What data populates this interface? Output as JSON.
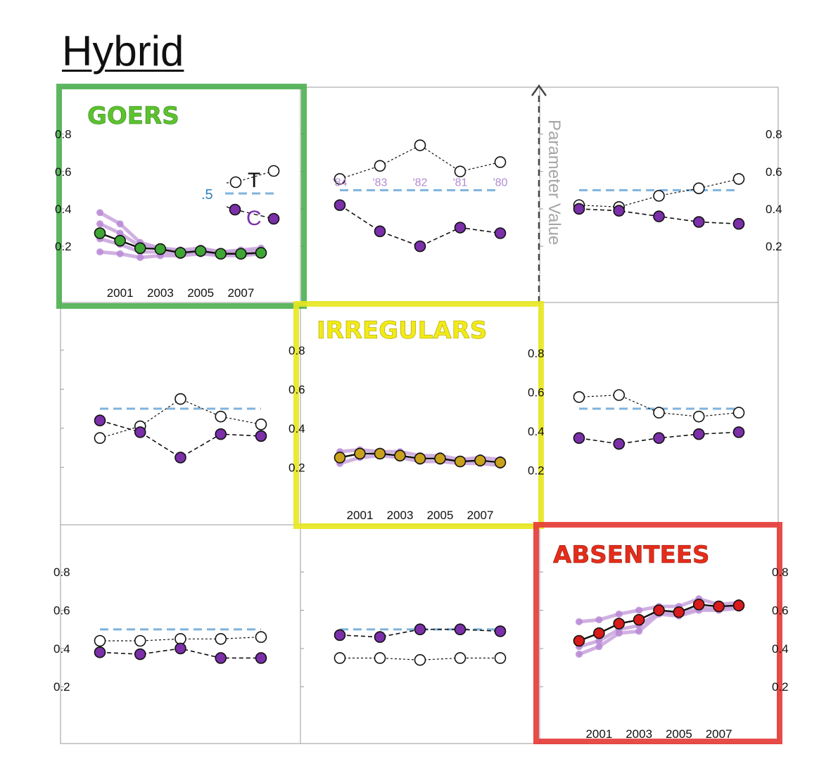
{
  "title": "Hybrid",
  "colors": {
    "goers": "#4caf50",
    "irregulars": "#e8e81e",
    "absentees": "#e53935",
    "treat_line": "#444444",
    "purple": "#7b2fa8",
    "light_purple": "#c8a2dc",
    "ref_line": "#7fb3dd"
  },
  "labels": {
    "axis": "Parameter Value",
    "half": ".5",
    "treat": "T",
    "control": "C",
    "goers": "GOERS",
    "irregulars": "IRREGULARS",
    "absentees": "ABSENTEES"
  },
  "chart_data": {
    "type": "line",
    "grid": "3x3 scatterplot matrix",
    "ylim": [
      0.05,
      0.9
    ],
    "ref_value": 0.5,
    "y_ticks": [
      "0.2",
      "0.4",
      "0.6",
      "0.8"
    ],
    "year_ticks": [
      "2001",
      "2003",
      "2005",
      "2007"
    ],
    "election_labels": [
      "'84",
      "'83",
      "'82",
      "'81",
      "'80"
    ],
    "panels": [
      {
        "row": 0,
        "col": 0,
        "kind": "group",
        "group": "goers",
        "x": [
          2000,
          2001,
          2002,
          2003,
          2004,
          2005,
          2006,
          2007,
          2008
        ],
        "mean": [
          0.27,
          0.23,
          0.19,
          0.185,
          0.165,
          0.175,
          0.16,
          0.16,
          0.165
        ],
        "bands": [
          [
            0.38,
            0.32,
            0.22,
            0.19,
            0.18,
            0.19,
            0.17,
            0.18,
            0.19
          ],
          [
            0.32,
            0.27,
            0.2,
            0.19,
            0.17,
            0.18,
            0.17,
            0.17,
            0.18
          ],
          [
            0.24,
            0.21,
            0.17,
            0.17,
            0.16,
            0.17,
            0.155,
            0.16,
            0.165
          ],
          [
            0.17,
            0.16,
            0.14,
            0.15,
            0.15,
            0.16,
            0.15,
            0.15,
            0.16
          ]
        ]
      },
      {
        "row": 0,
        "col": 1,
        "kind": "pair",
        "treat": [
          0.56,
          0.63,
          0.74,
          0.6,
          0.65
        ],
        "control": [
          0.42,
          0.28,
          0.2,
          0.3,
          0.27
        ]
      },
      {
        "row": 0,
        "col": 2,
        "kind": "pair",
        "treat": [
          0.42,
          0.41,
          0.47,
          0.51,
          0.56
        ],
        "control": [
          0.4,
          0.39,
          0.36,
          0.33,
          0.32
        ]
      },
      {
        "row": 1,
        "col": 0,
        "kind": "pair",
        "treat": [
          0.35,
          0.41,
          0.55,
          0.46,
          0.42
        ],
        "control": [
          0.44,
          0.38,
          0.25,
          0.37,
          0.36
        ]
      },
      {
        "row": 1,
        "col": 1,
        "kind": "group",
        "group": "irregulars",
        "x": [
          2000,
          2001,
          2002,
          2003,
          2004,
          2005,
          2006,
          2007,
          2008
        ],
        "mean": [
          0.25,
          0.27,
          0.27,
          0.26,
          0.245,
          0.245,
          0.23,
          0.235,
          0.225
        ],
        "bands": [
          [
            0.28,
            0.29,
            0.28,
            0.28,
            0.26,
            0.26,
            0.24,
            0.25,
            0.24
          ],
          [
            0.22,
            0.25,
            0.26,
            0.25,
            0.23,
            0.23,
            0.22,
            0.22,
            0.21
          ]
        ]
      },
      {
        "row": 1,
        "col": 2,
        "kind": "pair",
        "treat": [
          0.56,
          0.57,
          0.48,
          0.46,
          0.48
        ],
        "control": [
          0.35,
          0.32,
          0.35,
          0.37,
          0.38
        ]
      },
      {
        "row": 2,
        "col": 0,
        "kind": "pair",
        "treat": [
          0.44,
          0.44,
          0.45,
          0.45,
          0.46
        ],
        "control": [
          0.38,
          0.37,
          0.4,
          0.35,
          0.35
        ]
      },
      {
        "row": 2,
        "col": 1,
        "kind": "pair",
        "treat": [
          0.35,
          0.35,
          0.34,
          0.35,
          0.35
        ],
        "control": [
          0.47,
          0.46,
          0.5,
          0.5,
          0.49
        ]
      },
      {
        "row": 2,
        "col": 2,
        "kind": "group",
        "group": "absentees",
        "x": [
          2000,
          2001,
          2002,
          2003,
          2004,
          2005,
          2006,
          2007,
          2008
        ],
        "mean": [
          0.44,
          0.48,
          0.53,
          0.55,
          0.6,
          0.59,
          0.63,
          0.62,
          0.625
        ],
        "bands": [
          [
            0.54,
            0.55,
            0.58,
            0.6,
            0.62,
            0.62,
            0.66,
            0.63,
            0.64
          ],
          [
            0.41,
            0.44,
            0.5,
            0.52,
            0.59,
            0.58,
            0.61,
            0.61,
            0.62
          ],
          [
            0.37,
            0.41,
            0.48,
            0.49,
            0.58,
            0.57,
            0.6,
            0.6,
            0.61
          ]
        ]
      }
    ]
  }
}
